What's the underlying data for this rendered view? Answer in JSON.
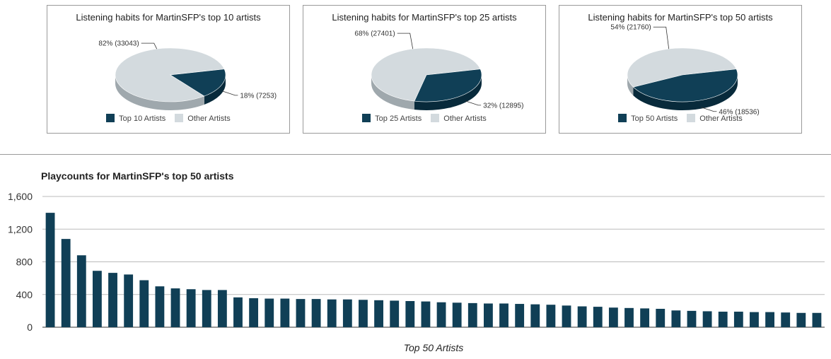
{
  "colors": {
    "top": "#103f56",
    "top_dark": "#082a3b",
    "other": "#d3dade",
    "other_dark": "#9fa8ad",
    "grid": "#bbbbbb",
    "bar": "#103f56"
  },
  "chart_data": [
    {
      "type": "pie",
      "title": "Listening habits for MartinSFP's top 10 artists",
      "slices": [
        {
          "label": "Top 10 Artists",
          "value": 7253,
          "percent_label": "18%",
          "value_label": "(7253)"
        },
        {
          "label": "Other Artists",
          "value": 33043,
          "percent_label": "82%",
          "value_label": "(33043)"
        }
      ],
      "legend": [
        "Top 10 Artists",
        "Other Artists"
      ],
      "legend_position": "bottom"
    },
    {
      "type": "pie",
      "title": "Listening habits for MartinSFP's top 25 artists",
      "slices": [
        {
          "label": "Top 25 Artists",
          "value": 12895,
          "percent_label": "32%",
          "value_label": "(12895)"
        },
        {
          "label": "Other Artists",
          "value": 27401,
          "percent_label": "68%",
          "value_label": "(27401)"
        }
      ],
      "legend": [
        "Top 25 Artists",
        "Other Artists"
      ],
      "legend_position": "bottom"
    },
    {
      "type": "pie",
      "title": "Listening habits for MartinSFP's top 50 artists",
      "slices": [
        {
          "label": "Top 50 Artists",
          "value": 18536,
          "percent_label": "46%",
          "value_label": "(18536)"
        },
        {
          "label": "Other Artists",
          "value": 21760,
          "percent_label": "54%",
          "value_label": "(21760)"
        }
      ],
      "legend": [
        "Top 50 Artists",
        "Other Artists"
      ],
      "legend_position": "bottom"
    },
    {
      "type": "bar",
      "title": "Playcounts for MartinSFP's top 50 artists",
      "xlabel": "Top 50 Artists",
      "ylabel": "",
      "ylim": [
        0,
        1600
      ],
      "yticks": [
        0,
        400,
        800,
        1200,
        1600
      ],
      "ytick_labels": [
        "0",
        "400",
        "800",
        "1,200",
        "1,600"
      ],
      "grid": true,
      "values": [
        1400,
        1080,
        880,
        690,
        665,
        645,
        575,
        500,
        475,
        465,
        455,
        455,
        365,
        355,
        350,
        350,
        345,
        345,
        340,
        340,
        335,
        330,
        325,
        320,
        315,
        305,
        300,
        295,
        290,
        290,
        285,
        280,
        275,
        265,
        255,
        250,
        240,
        235,
        230,
        225,
        205,
        200,
        195,
        190,
        190,
        185,
        185,
        180,
        175,
        175
      ]
    }
  ]
}
